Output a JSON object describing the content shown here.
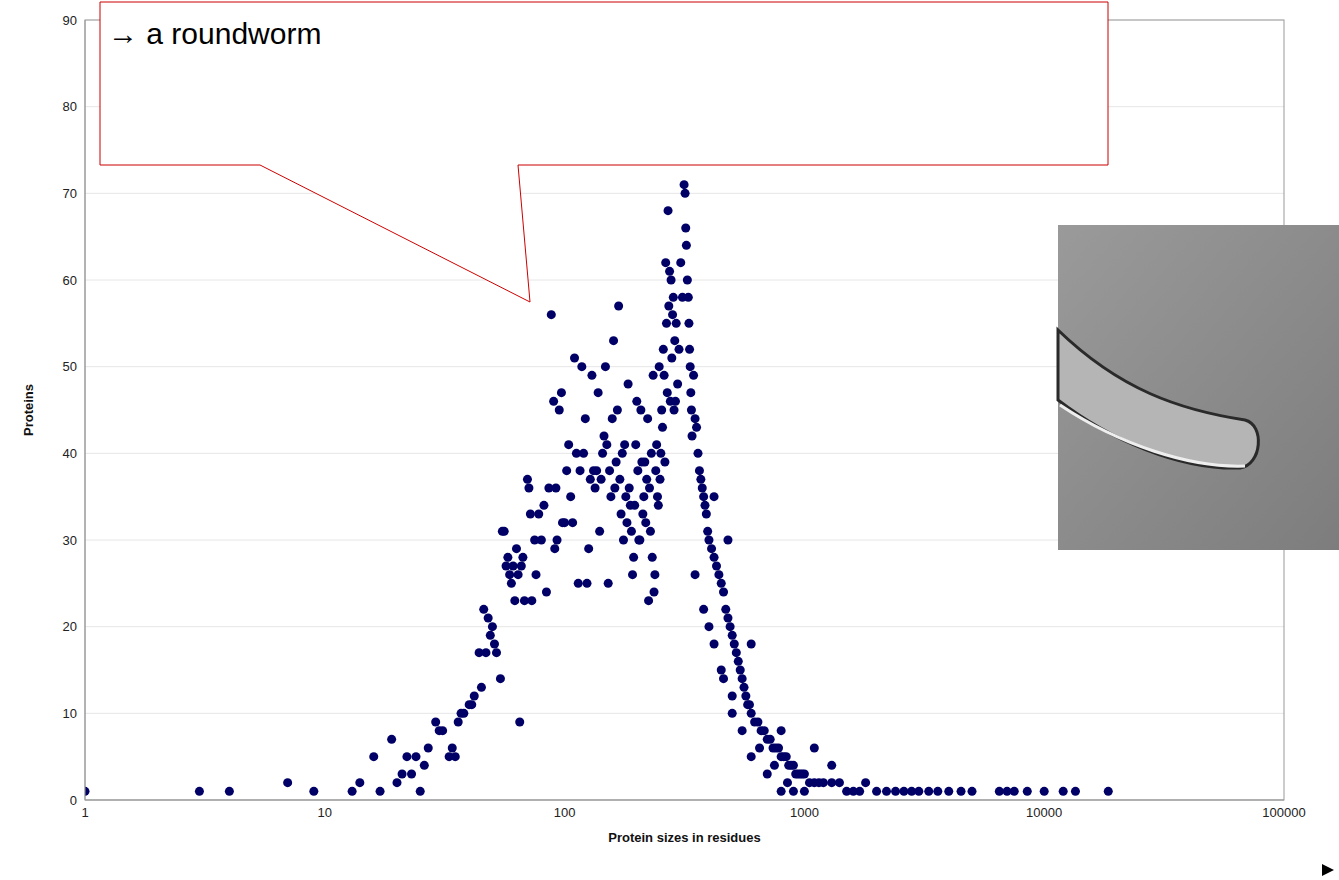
{
  "chart_data": {
    "type": "scatter",
    "annotation": "→ a roundworm",
    "x_label": "Protein sizes in residues",
    "y_label": "Proteins",
    "log": "x",
    "grid": true,
    "marker": "circle",
    "color": "#000066",
    "xlim": [
      1,
      100000
    ],
    "xticks": [
      1,
      10,
      100,
      1000,
      10000,
      100000
    ],
    "ylim": [
      0,
      90
    ],
    "yticks": [
      0,
      10,
      20,
      30,
      40,
      50,
      60,
      70,
      80,
      90
    ],
    "x": [
      1,
      3,
      4,
      7,
      9,
      13,
      14,
      16,
      17,
      19,
      20,
      21,
      22,
      23,
      24,
      25,
      26,
      27,
      29,
      30,
      31,
      33,
      34,
      35,
      36,
      37,
      38,
      40,
      41,
      42,
      44,
      45,
      46,
      47,
      48,
      49,
      50,
      51,
      52,
      54,
      55,
      56,
      57,
      58,
      59,
      60,
      61,
      62,
      63,
      64,
      65,
      66,
      67,
      68,
      70,
      71,
      72,
      73,
      75,
      76,
      78,
      80,
      82,
      84,
      86,
      88,
      90,
      91,
      92,
      93,
      95,
      97,
      98,
      100,
      102,
      104,
      106,
      108,
      110,
      112,
      114,
      116,
      118,
      120,
      122,
      124,
      126,
      128,
      130,
      132,
      134,
      136,
      138,
      140,
      142,
      144,
      146,
      148,
      150,
      152,
      154,
      156,
      158,
      160,
      162,
      164,
      166,
      168,
      170,
      172,
      174,
      176,
      178,
      180,
      182,
      184,
      186,
      188,
      190,
      192,
      194,
      196,
      198,
      200,
      202,
      204,
      206,
      208,
      210,
      212,
      214,
      216,
      218,
      220,
      222,
      224,
      226,
      228,
      230,
      232,
      234,
      236,
      238,
      240,
      242,
      244,
      246,
      248,
      250,
      252,
      254,
      256,
      258,
      260,
      262,
      264,
      266,
      268,
      270,
      272,
      274,
      276,
      278,
      280,
      282,
      284,
      286,
      288,
      290,
      292,
      296,
      300,
      305,
      310,
      315,
      318,
      320,
      322,
      325,
      328,
      330,
      332,
      334,
      336,
      338,
      340,
      345,
      350,
      355,
      360,
      365,
      370,
      375,
      380,
      385,
      390,
      395,
      400,
      410,
      420,
      430,
      440,
      450,
      460,
      470,
      480,
      490,
      500,
      510,
      520,
      530,
      540,
      550,
      560,
      570,
      580,
      590,
      600,
      620,
      640,
      660,
      680,
      700,
      720,
      740,
      760,
      780,
      800,
      820,
      840,
      860,
      880,
      900,
      920,
      940,
      960,
      980,
      1000,
      1050,
      1100,
      1150,
      1200,
      1300,
      1400,
      1500,
      1600,
      1700,
      1800,
      2000,
      2200,
      2400,
      2600,
      2800,
      3000,
      3300,
      3600,
      4000,
      4500,
      5000,
      6500,
      7000,
      7500,
      8500,
      10000,
      12000,
      13500,
      18500,
      400,
      450,
      500,
      600,
      700,
      800,
      900,
      1000,
      420,
      480,
      600,
      800,
      1100,
      1300,
      350,
      380,
      420,
      460,
      500,
      550,
      650,
      750,
      850
    ],
    "values": [
      1,
      1,
      1,
      2,
      1,
      1,
      2,
      5,
      1,
      7,
      2,
      3,
      5,
      3,
      5,
      1,
      4,
      6,
      9,
      8,
      8,
      5,
      6,
      5,
      9,
      10,
      10,
      11,
      11,
      12,
      17,
      13,
      22,
      17,
      21,
      19,
      20,
      18,
      17,
      14,
      31,
      31,
      27,
      28,
      26,
      25,
      27,
      23,
      29,
      26,
      9,
      27,
      28,
      23,
      37,
      36,
      33,
      23,
      30,
      26,
      33,
      30,
      34,
      24,
      36,
      56,
      46,
      29,
      36,
      30,
      45,
      47,
      32,
      32,
      38,
      41,
      35,
      32,
      51,
      40,
      25,
      38,
      50,
      40,
      44,
      25,
      29,
      37,
      49,
      38,
      36,
      38,
      47,
      31,
      37,
      40,
      42,
      50,
      41,
      25,
      38,
      35,
      44,
      53,
      36,
      39,
      45,
      57,
      37,
      33,
      40,
      30,
      41,
      35,
      32,
      48,
      36,
      34,
      31,
      26,
      28,
      34,
      41,
      46,
      38,
      30,
      30,
      45,
      39,
      33,
      35,
      39,
      32,
      37,
      44,
      23,
      36,
      31,
      40,
      28,
      49,
      24,
      26,
      38,
      41,
      35,
      34,
      50,
      37,
      40,
      45,
      43,
      52,
      49,
      39,
      62,
      55,
      47,
      68,
      57,
      61,
      46,
      60,
      51,
      56,
      58,
      45,
      53,
      46,
      55,
      48,
      52,
      62,
      58,
      71,
      70,
      66,
      64,
      60,
      58,
      55,
      52,
      50,
      47,
      45,
      42,
      49,
      44,
      43,
      40,
      38,
      37,
      36,
      35,
      34,
      33,
      31,
      30,
      29,
      28,
      27,
      26,
      25,
      24,
      22,
      21,
      20,
      19,
      18,
      17,
      16,
      15,
      14,
      13,
      12,
      11,
      11,
      10,
      9,
      9,
      8,
      8,
      7,
      7,
      6,
      6,
      6,
      5,
      5,
      5,
      4,
      4,
      4,
      3,
      3,
      3,
      3,
      3,
      2,
      2,
      2,
      2,
      2,
      2,
      1,
      1,
      1,
      2,
      1,
      1,
      1,
      1,
      1,
      1,
      1,
      1,
      1,
      1,
      1,
      1,
      1,
      1,
      1,
      1,
      1,
      1,
      1,
      20,
      15,
      10,
      5,
      3,
      1,
      1,
      1,
      35,
      30,
      18,
      8,
      6,
      4,
      26,
      22,
      18,
      14,
      12,
      8,
      6,
      4,
      2
    ]
  }
}
